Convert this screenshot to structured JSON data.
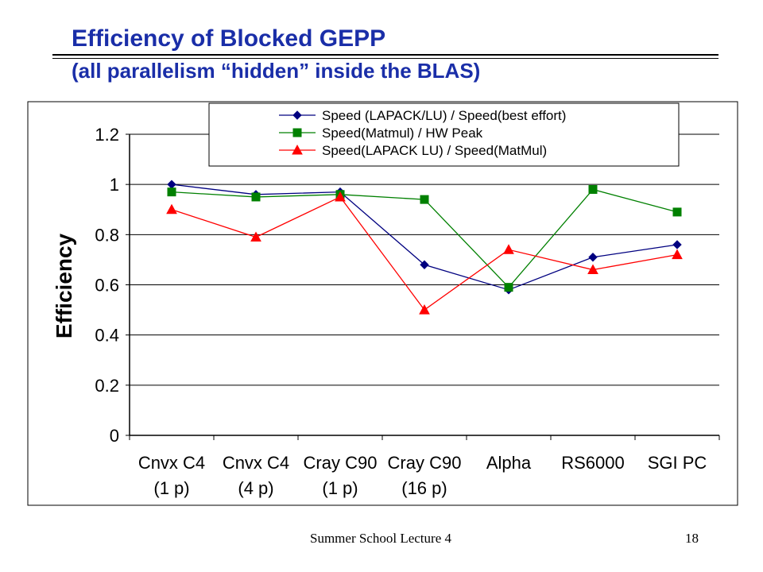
{
  "slide": {
    "title": "Efficiency of Blocked GEPP",
    "subtitle": "(all parallelism “hidden” inside the BLAS)",
    "footer_text": "Summer School Lecture 4",
    "page_number": "18"
  },
  "chart_data": {
    "type": "line",
    "title": "",
    "xlabel": "",
    "ylabel": "Efficiency",
    "ylim": [
      0,
      1.2
    ],
    "y_ticks": [
      "0",
      "0.2",
      "0.4",
      "0.6",
      "0.8",
      "1",
      "1.2"
    ],
    "categories": [
      [
        "Cnvx C4",
        "(1 p)"
      ],
      [
        "Cnvx C4",
        "(4 p)"
      ],
      [
        "Cray C90",
        "(1 p)"
      ],
      [
        "Cray C90",
        "(16 p)"
      ],
      [
        "Alpha",
        ""
      ],
      [
        "RS6000",
        ""
      ],
      [
        "SGI PC",
        ""
      ]
    ],
    "grid": true,
    "legend_position": "top",
    "series": [
      {
        "name": "Speed (LAPACK/LU) / Speed(best effort)",
        "color": "#000080",
        "marker": "diamond",
        "values": [
          1.0,
          0.96,
          0.97,
          0.68,
          0.58,
          0.71,
          0.76
        ]
      },
      {
        "name": "Speed(Matmul) / HW Peak",
        "color": "#008000",
        "marker": "square",
        "values": [
          0.97,
          0.95,
          0.96,
          0.94,
          0.59,
          0.98,
          0.89
        ]
      },
      {
        "name": "Speed(LAPACK LU) / Speed(MatMul)",
        "color": "#ff0000",
        "marker": "triangle",
        "values": [
          0.9,
          0.79,
          0.95,
          0.5,
          0.74,
          0.66,
          0.72
        ]
      }
    ]
  }
}
